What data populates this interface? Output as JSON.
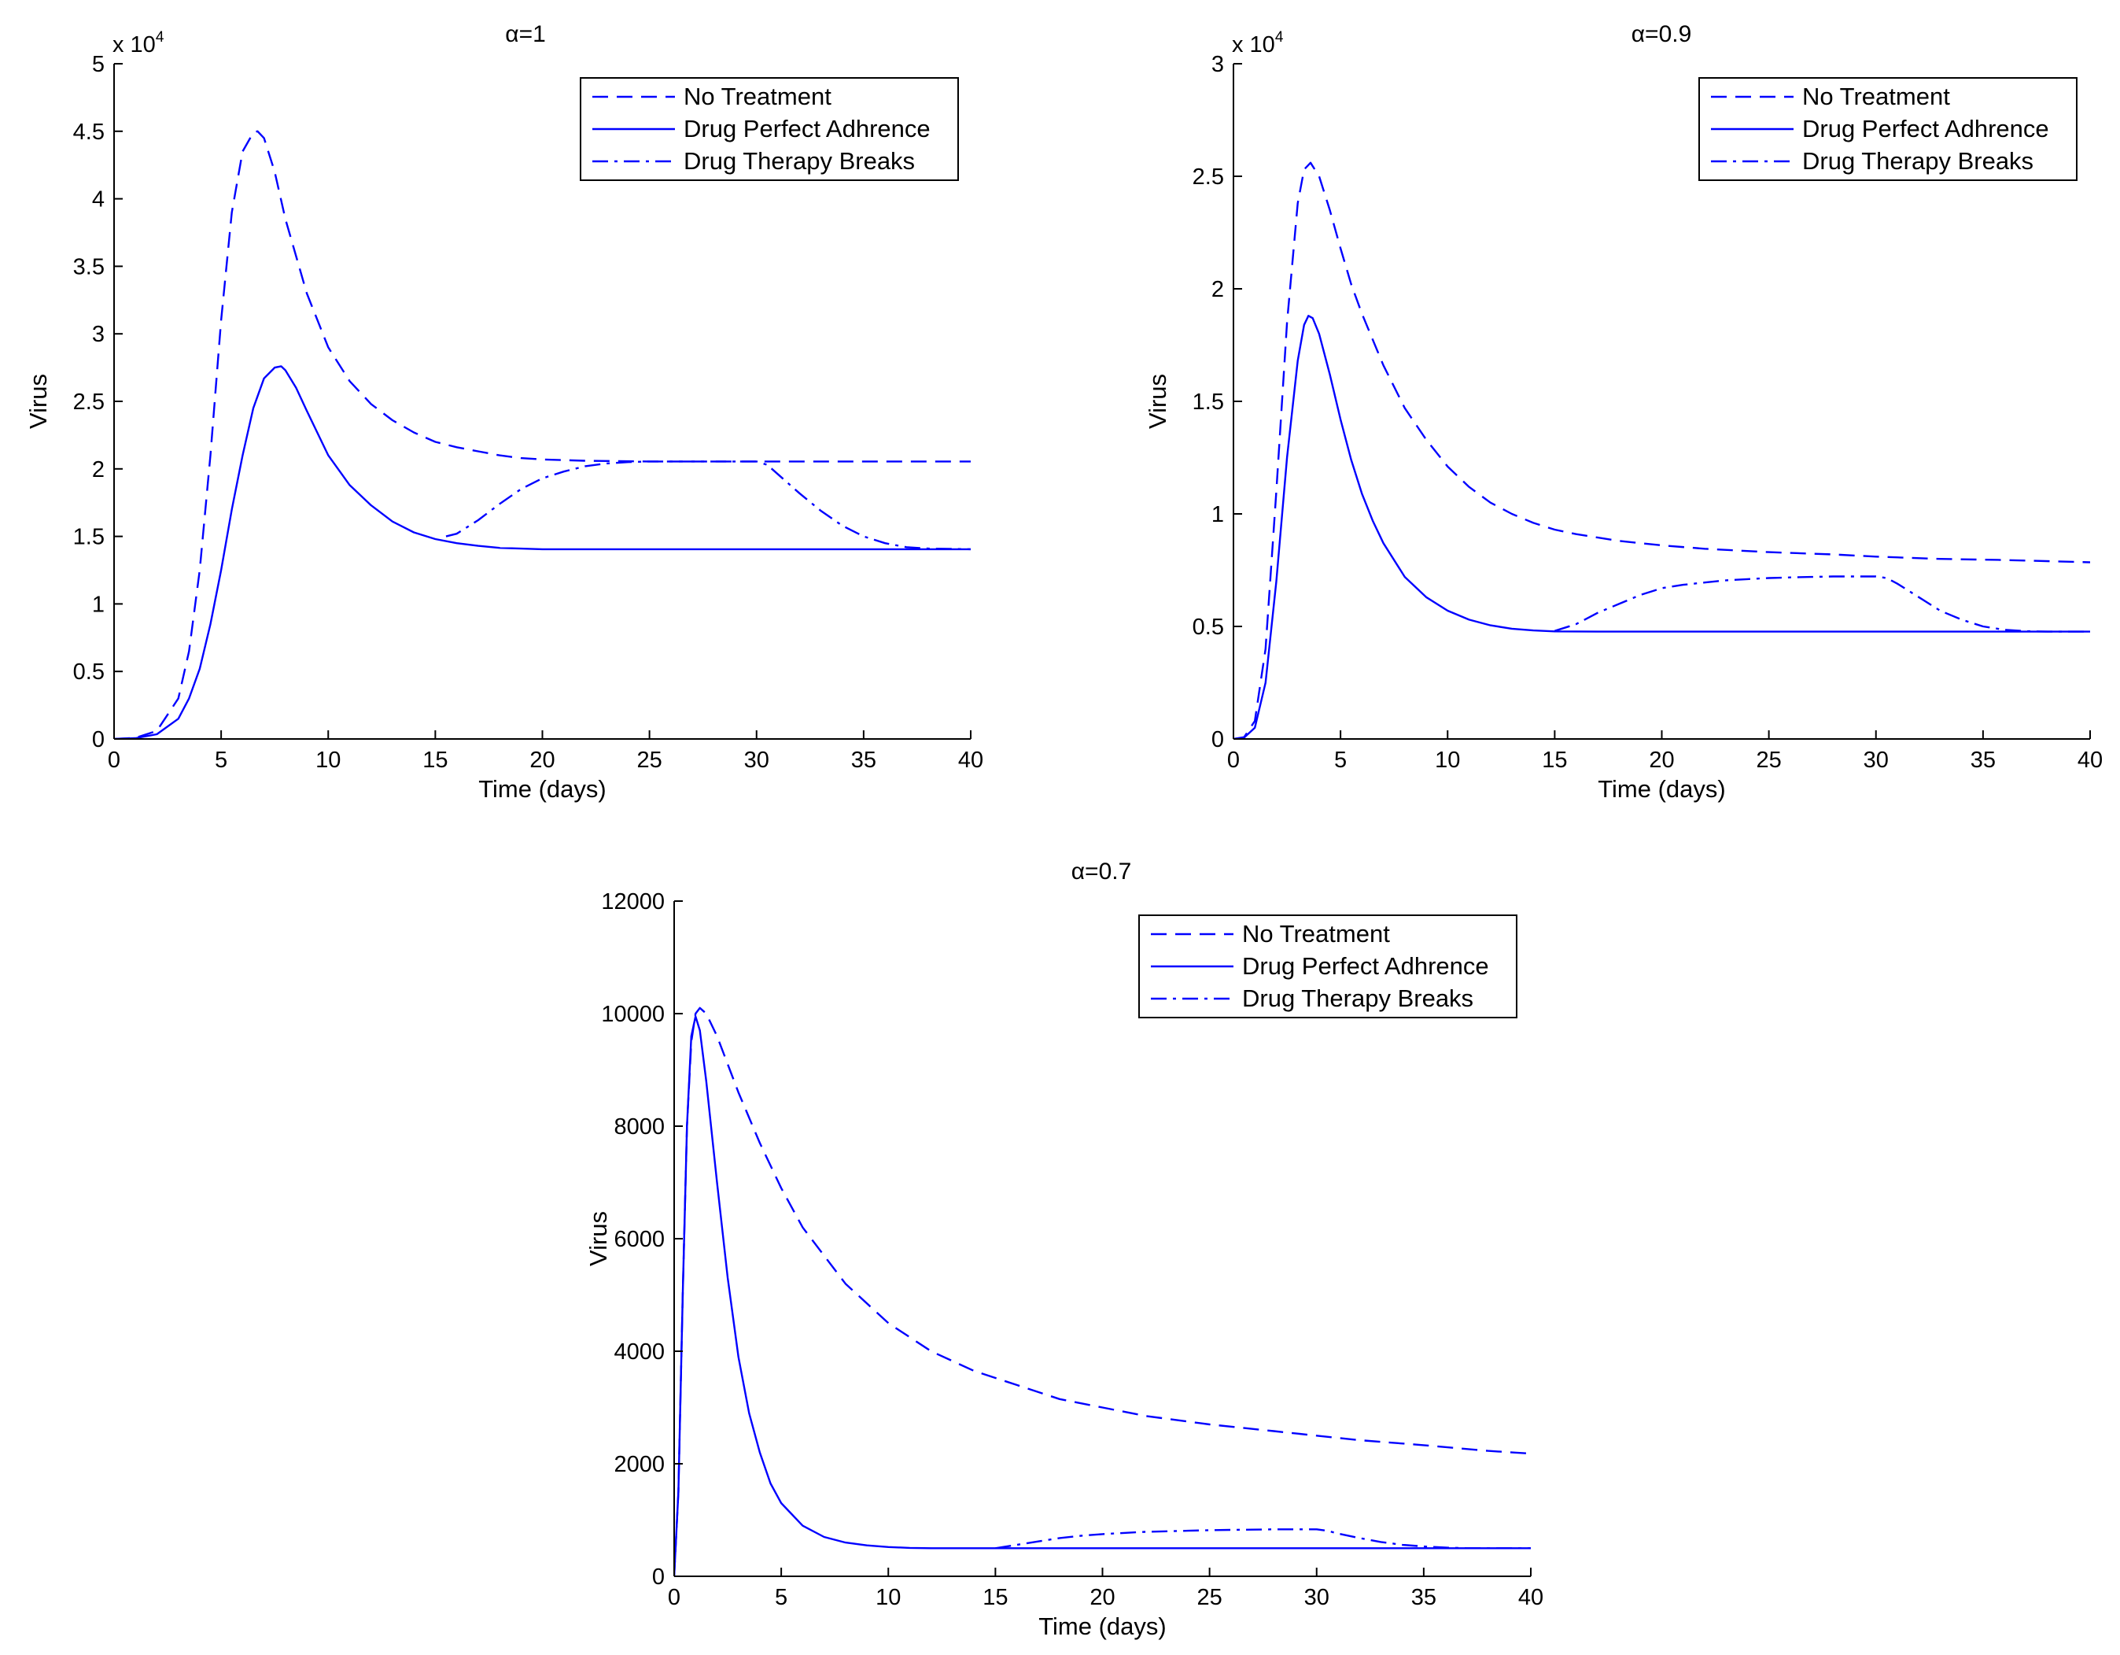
{
  "chart_data": [
    {
      "type": "line",
      "title": "α=1",
      "xlabel": "Time (days)",
      "ylabel": "Virus",
      "xlim": [
        0,
        40
      ],
      "ylim": [
        0,
        50000
      ],
      "xticks": [
        0,
        5,
        10,
        15,
        20,
        25,
        30,
        35,
        40
      ],
      "xtick_labels": [
        "0",
        "5",
        "10",
        "15",
        "20",
        "25",
        "30",
        "35",
        "40"
      ],
      "yticks": [
        0,
        5000,
        10000,
        15000,
        20000,
        25000,
        30000,
        35000,
        40000,
        45000,
        50000
      ],
      "ytick_labels": [
        "0",
        "0.5",
        "1",
        "1.5",
        "2",
        "2.5",
        "3",
        "3.5",
        "4",
        "4.5",
        "5"
      ],
      "y_multiplier": {
        "base": "x 10",
        "exponent": "4"
      },
      "legend_position": "top-right",
      "series": [
        {
          "name": "No Treatment",
          "style": "dashed",
          "color": "#0000ff",
          "x": [
            0,
            1,
            2,
            3,
            3.5,
            4,
            4.5,
            5,
            5.5,
            6,
            6.5,
            6.7,
            7,
            7.5,
            8,
            9,
            10,
            11,
            12,
            13,
            14,
            15,
            16,
            17,
            18,
            19,
            20,
            22,
            25,
            30,
            35,
            40
          ],
          "y": [
            0,
            80,
            600,
            3000,
            6500,
            12500,
            21000,
            31000,
            39000,
            43500,
            44900,
            45000,
            44500,
            42000,
            38500,
            33000,
            29000,
            26500,
            24800,
            23600,
            22700,
            22000,
            21600,
            21300,
            21000,
            20800,
            20700,
            20600,
            20550,
            20550,
            20550,
            20550
          ]
        },
        {
          "name": "Drug Perfect Adhrence",
          "style": "solid",
          "color": "#0000ff",
          "x": [
            0,
            1,
            2,
            3,
            3.5,
            4,
            4.5,
            5,
            5.5,
            6,
            6.5,
            7,
            7.5,
            7.8,
            8,
            8.5,
            9,
            10,
            11,
            12,
            13,
            14,
            15,
            16,
            17,
            18,
            20,
            22,
            25,
            30,
            35,
            40
          ],
          "y": [
            0,
            60,
            350,
            1500,
            3000,
            5200,
            8500,
            12500,
            17000,
            21000,
            24500,
            26700,
            27500,
            27600,
            27300,
            26000,
            24300,
            21000,
            18800,
            17300,
            16100,
            15300,
            14800,
            14500,
            14300,
            14150,
            14050,
            14050,
            14050,
            14050,
            14050,
            14050
          ]
        },
        {
          "name": "Drug Therapy Breaks",
          "style": "dashdot",
          "color": "#0000ff",
          "x": [
            15.5,
            16,
            17,
            18,
            19,
            20,
            21,
            22,
            23,
            24,
            25,
            26,
            27,
            28,
            29,
            30,
            30.5,
            31,
            32,
            33,
            34,
            35,
            36,
            37,
            38,
            40
          ],
          "y": [
            15000,
            15200,
            16200,
            17400,
            18500,
            19300,
            19800,
            20200,
            20400,
            20500,
            20550,
            20550,
            20550,
            20550,
            20550,
            20550,
            20300,
            19600,
            18200,
            16900,
            15800,
            15000,
            14500,
            14200,
            14100,
            14050
          ]
        }
      ]
    },
    {
      "type": "line",
      "title": "α=0.9",
      "xlabel": "Time (days)",
      "ylabel": "Virus",
      "xlim": [
        0,
        40
      ],
      "ylim": [
        0,
        30000
      ],
      "xticks": [
        0,
        5,
        10,
        15,
        20,
        25,
        30,
        35,
        40
      ],
      "xtick_labels": [
        "0",
        "5",
        "10",
        "15",
        "20",
        "25",
        "30",
        "35",
        "40"
      ],
      "yticks": [
        0,
        5000,
        10000,
        15000,
        20000,
        25000,
        30000
      ],
      "ytick_labels": [
        "0",
        "0.5",
        "1",
        "1.5",
        "2",
        "2.5",
        "3"
      ],
      "y_multiplier": {
        "base": "x 10",
        "exponent": "4"
      },
      "legend_position": "top-right",
      "series": [
        {
          "name": "No Treatment",
          "style": "dashed",
          "color": "#0000ff",
          "x": [
            0,
            0.5,
            1,
            1.5,
            2,
            2.5,
            3,
            3.3,
            3.6,
            4,
            4.5,
            5,
            5.5,
            6,
            7,
            8,
            9,
            10,
            11,
            12,
            13,
            14,
            15,
            16,
            18,
            20,
            22,
            25,
            28,
            30,
            33,
            36,
            40
          ],
          "y": [
            0,
            80,
            800,
            4000,
            11000,
            18500,
            23800,
            25300,
            25600,
            25000,
            23500,
            21800,
            20200,
            18900,
            16600,
            14700,
            13300,
            12100,
            11200,
            10500,
            10000,
            9600,
            9300,
            9100,
            8800,
            8600,
            8450,
            8300,
            8200,
            8100,
            8000,
            7950,
            7850
          ]
        },
        {
          "name": "Drug Perfect Adhrence",
          "style": "solid",
          "color": "#0000ff",
          "x": [
            0,
            0.5,
            1,
            1.5,
            2,
            2.5,
            3,
            3.3,
            3.5,
            3.7,
            4,
            4.5,
            5,
            5.5,
            6,
            6.5,
            7,
            8,
            9,
            10,
            11,
            12,
            13,
            14,
            15,
            17,
            20,
            25,
            30,
            35,
            40
          ],
          "y": [
            0,
            60,
            500,
            2500,
            7000,
            12500,
            16800,
            18400,
            18800,
            18700,
            18000,
            16200,
            14200,
            12400,
            10900,
            9700,
            8700,
            7200,
            6300,
            5700,
            5300,
            5050,
            4900,
            4820,
            4780,
            4770,
            4770,
            4770,
            4770,
            4770,
            4770
          ]
        },
        {
          "name": "Drug Therapy Breaks",
          "style": "dashdot",
          "color": "#0000ff",
          "x": [
            15,
            16,
            17,
            18,
            19,
            20,
            21,
            22,
            23,
            24,
            25,
            26,
            27,
            28,
            29,
            30,
            30.5,
            31,
            32,
            33,
            34,
            35,
            36,
            37,
            38,
            40
          ],
          "y": [
            4800,
            5100,
            5600,
            6000,
            6400,
            6700,
            6850,
            6950,
            7050,
            7100,
            7150,
            7180,
            7200,
            7220,
            7220,
            7220,
            7150,
            6900,
            6300,
            5700,
            5300,
            5000,
            4850,
            4790,
            4770,
            4770
          ]
        }
      ]
    },
    {
      "type": "line",
      "title": "α=0.7",
      "xlabel": "Time (days)",
      "ylabel": "Virus",
      "xlim": [
        0,
        40
      ],
      "ylim": [
        0,
        12000
      ],
      "xticks": [
        0,
        5,
        10,
        15,
        20,
        25,
        30,
        35,
        40
      ],
      "xtick_labels": [
        "0",
        "5",
        "10",
        "15",
        "20",
        "25",
        "30",
        "35",
        "40"
      ],
      "yticks": [
        0,
        2000,
        4000,
        6000,
        8000,
        10000,
        12000
      ],
      "ytick_labels": [
        "0",
        "2000",
        "4000",
        "6000",
        "8000",
        "10000",
        "12000"
      ],
      "legend_position": "top-right",
      "series": [
        {
          "name": "No Treatment",
          "style": "dashed",
          "color": "#0000ff",
          "x": [
            0,
            0.2,
            0.4,
            0.6,
            0.8,
            1,
            1.2,
            1.5,
            2,
            2.5,
            3,
            4,
            5,
            6,
            7,
            8,
            10,
            12,
            14,
            16,
            18,
            20,
            22,
            25,
            28,
            30,
            32,
            35,
            38,
            40
          ],
          "y": [
            0,
            1500,
            5000,
            8000,
            9500,
            10000,
            10100,
            10000,
            9600,
            9100,
            8600,
            7700,
            6900,
            6200,
            5700,
            5200,
            4500,
            4000,
            3650,
            3400,
            3150,
            3000,
            2850,
            2700,
            2580,
            2500,
            2420,
            2330,
            2230,
            2180
          ]
        },
        {
          "name": "Drug Perfect Adhrence",
          "style": "solid",
          "color": "#0000ff",
          "x": [
            0,
            0.2,
            0.4,
            0.6,
            0.8,
            1,
            1.2,
            1.5,
            2,
            2.5,
            3,
            3.5,
            4,
            4.5,
            5,
            6,
            7,
            8,
            9,
            10,
            11,
            12,
            13,
            15,
            20,
            25,
            30,
            35,
            40
          ],
          "y": [
            0,
            1500,
            5000,
            8000,
            9600,
            9950,
            9700,
            8800,
            7000,
            5300,
            3900,
            2900,
            2200,
            1650,
            1300,
            900,
            700,
            600,
            550,
            520,
            505,
            500,
            500,
            500,
            500,
            500,
            500,
            500,
            500
          ]
        },
        {
          "name": "Drug Therapy Breaks",
          "style": "dashdot",
          "color": "#0000ff",
          "x": [
            15,
            16,
            17,
            18,
            19,
            20,
            21,
            22,
            23,
            24,
            25,
            26,
            27,
            28,
            29,
            30,
            30.5,
            31,
            32,
            33,
            34,
            35,
            36,
            37,
            40
          ],
          "y": [
            500,
            560,
            620,
            680,
            720,
            750,
            770,
            790,
            800,
            810,
            820,
            825,
            830,
            835,
            835,
            835,
            810,
            760,
            680,
            610,
            560,
            530,
            510,
            500,
            500
          ]
        }
      ]
    }
  ]
}
